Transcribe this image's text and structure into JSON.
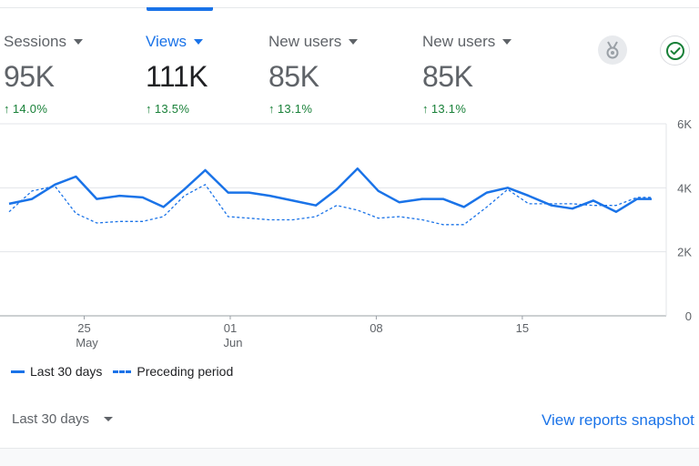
{
  "metrics": [
    {
      "label": "Sessions",
      "value": "95K",
      "delta": "14.0%",
      "active": false
    },
    {
      "label": "Views",
      "value": "111K",
      "delta": "13.5%",
      "active": true
    },
    {
      "label": "New users",
      "value": "85K",
      "delta": "13.1%",
      "active": false
    },
    {
      "label": "New users",
      "value": "85K",
      "delta": "13.1%",
      "active": false
    }
  ],
  "icons": {
    "badge": "award-badge-icon",
    "check": "check-circle-icon",
    "dropdown": "caret-down-icon",
    "delta": "arrow-up-icon"
  },
  "colors": {
    "accent": "#1a73e8",
    "positive": "#188038",
    "muted": "#5f6368"
  },
  "legend": {
    "current": "Last 30 days",
    "previous": "Preceding period"
  },
  "date_range": {
    "selected": "Last 30 days"
  },
  "snapshot_link": "View reports snapshot",
  "chart_data": {
    "type": "line",
    "y_ticks": [
      "6K",
      "4K",
      "2K",
      "0"
    ],
    "ylim": [
      0,
      6000
    ],
    "x_ticks": [
      {
        "day": 25,
        "label": "25",
        "sublabel": "May"
      },
      {
        "day": 32,
        "label": "01",
        "sublabel": "Jun"
      },
      {
        "day": 39,
        "label": "08",
        "sublabel": ""
      },
      {
        "day": 46,
        "label": "15",
        "sublabel": ""
      }
    ],
    "x_range": [
      21.4,
      52.2
    ],
    "grid": true,
    "legend_position": "bottom-left",
    "series": [
      {
        "name": "Last 30 days",
        "style": "solid",
        "x": [
          21.4,
          22.5,
          23.6,
          24.6,
          25.6,
          26.7,
          27.8,
          28.8,
          29.8,
          30.8,
          31.9,
          32.9,
          33.9,
          35.0,
          36.1,
          37.1,
          38.1,
          39.1,
          40.1,
          41.2,
          42.2,
          43.2,
          44.3,
          45.3,
          46.3,
          47.4,
          48.4,
          49.4,
          50.5,
          51.5,
          52.2
        ],
        "values": [
          3500,
          3650,
          4100,
          4350,
          3650,
          3750,
          3700,
          3400,
          3950,
          4550,
          3850,
          3850,
          3750,
          3600,
          3450,
          3950,
          4600,
          3900,
          3550,
          3650,
          3650,
          3400,
          3850,
          4000,
          3750,
          3450,
          3350,
          3600,
          3250,
          3650,
          3650
        ]
      },
      {
        "name": "Preceding period",
        "style": "dashed",
        "x": [
          21.4,
          22.5,
          23.6,
          24.6,
          25.6,
          26.7,
          27.8,
          28.8,
          29.8,
          30.8,
          31.9,
          32.9,
          33.9,
          35.0,
          36.1,
          37.1,
          38.1,
          39.1,
          40.1,
          41.2,
          42.2,
          43.2,
          44.3,
          45.3,
          46.3,
          47.4,
          48.4,
          49.4,
          50.5,
          51.5,
          52.2
        ],
        "values": [
          3250,
          3900,
          4050,
          3200,
          2900,
          2950,
          2950,
          3100,
          3750,
          4100,
          3100,
          3050,
          3000,
          3000,
          3100,
          3450,
          3300,
          3050,
          3100,
          3000,
          2850,
          2850,
          3400,
          3950,
          3500,
          3500,
          3500,
          3450,
          3450,
          3700,
          3700
        ]
      }
    ]
  }
}
